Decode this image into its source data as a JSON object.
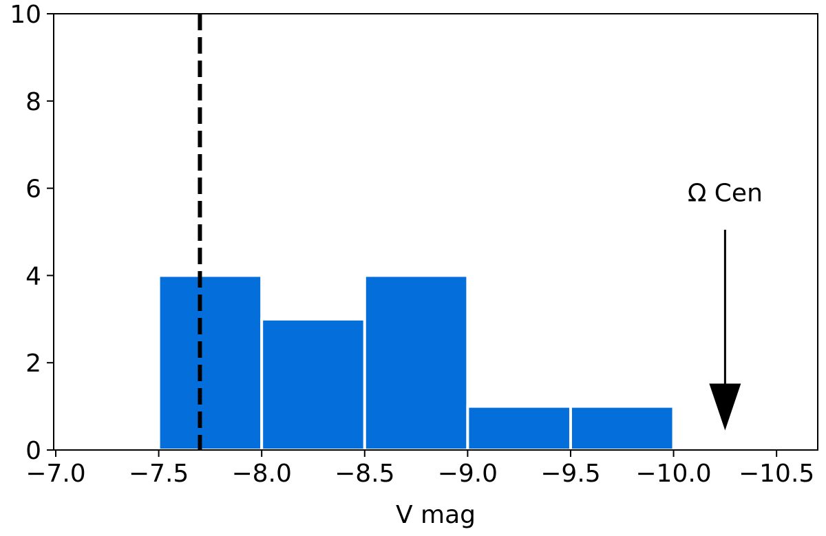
{
  "chart_data": {
    "type": "histogram",
    "xlabel": "V mag",
    "bins": [
      -7.5,
      -8.0,
      -8.5,
      -9.0,
      -9.5,
      -10.0
    ],
    "values": [
      4,
      3,
      4,
      1,
      1
    ],
    "color": "#046fdb",
    "xlim": [
      -6.99,
      -10.7
    ],
    "xticks": [
      {
        "value": -7.0,
        "label": "−7.0"
      },
      {
        "value": -7.5,
        "label": "−7.5"
      },
      {
        "value": -8.0,
        "label": "−8.0"
      },
      {
        "value": -8.5,
        "label": "−8.5"
      },
      {
        "value": -9.0,
        "label": "−9.0"
      },
      {
        "value": -9.5,
        "label": "−9.5"
      },
      {
        "value": -10.0,
        "label": "−10.0"
      },
      {
        "value": -10.5,
        "label": "−10.5"
      }
    ],
    "ylim": [
      0,
      10
    ],
    "yticks": [
      0,
      2,
      4,
      6,
      8,
      10
    ],
    "vline": -7.7,
    "annotation": {
      "text": "Ω Cen",
      "x": -10.25,
      "y_text": 5.7,
      "y_start": 5.05,
      "y_end": 0.45
    }
  }
}
